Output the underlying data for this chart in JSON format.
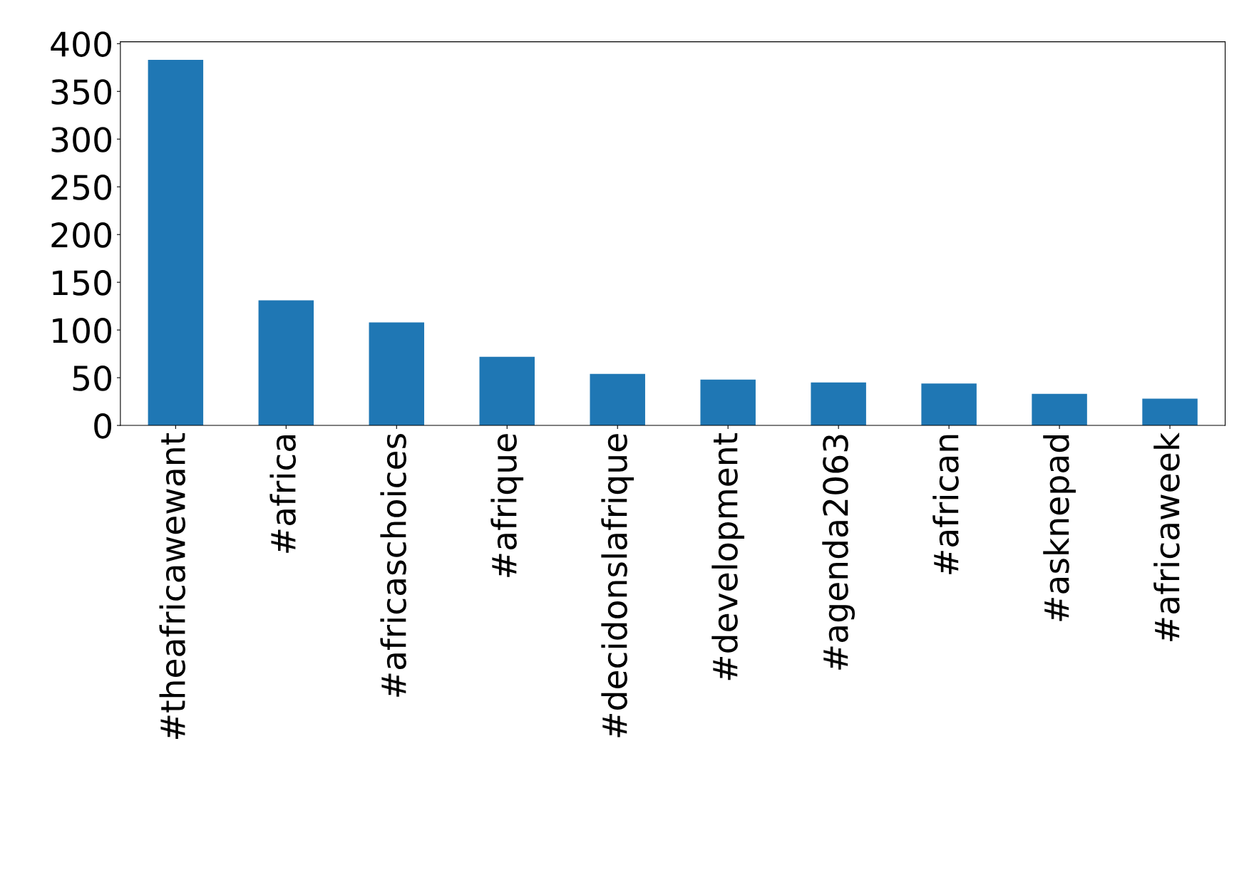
{
  "chart_data": {
    "type": "bar",
    "categories": [
      "#theafricawewant",
      "#africa",
      "#africaschoices",
      "#afrique",
      "#decidonslafrique",
      "#development",
      "#agenda2063",
      "#african",
      "#asknepad",
      "#africaweek"
    ],
    "values": [
      383,
      131,
      108,
      72,
      54,
      48,
      45,
      44,
      33,
      28
    ],
    "color": "#1f77b4",
    "ylim": [
      0,
      402
    ],
    "yticks": [
      0,
      50,
      100,
      150,
      200,
      250,
      300,
      350,
      400
    ],
    "grid": false,
    "legend": false
  }
}
